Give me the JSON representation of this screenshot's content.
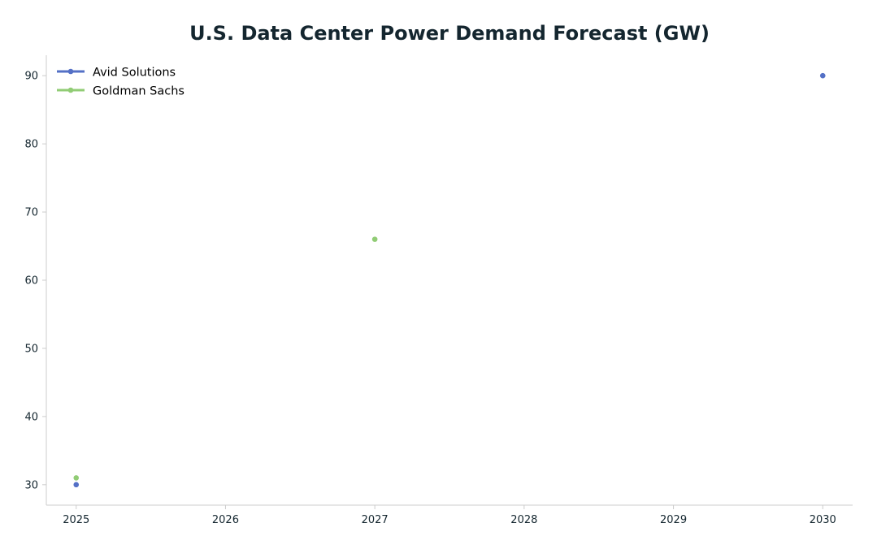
{
  "chart_data": {
    "type": "scatter",
    "title": "U.S. Data Center Power Demand Forecast (GW)",
    "xlabel": "",
    "ylabel": "",
    "x_ticks": [
      "2025",
      "2026",
      "2027",
      "2028",
      "2029",
      "2030"
    ],
    "y_ticks": [
      "30",
      "40",
      "50",
      "60",
      "70",
      "80",
      "90"
    ],
    "xlim": [
      2024.8,
      2030.2
    ],
    "ylim": [
      27,
      93
    ],
    "grid": false,
    "legend_position": "top-left",
    "series": [
      {
        "name": "Avid Solutions",
        "color": "#5470c6",
        "points": [
          {
            "x": 2025,
            "y": 30
          },
          {
            "x": 2030,
            "y": 90
          }
        ]
      },
      {
        "name": "Goldman Sachs",
        "color": "#91cc75",
        "points": [
          {
            "x": 2025,
            "y": 31
          },
          {
            "x": 2027,
            "y": 66
          }
        ]
      }
    ]
  },
  "colors": {
    "text": "#14262f",
    "axis": "#cccccc",
    "background": "#ffffff"
  }
}
